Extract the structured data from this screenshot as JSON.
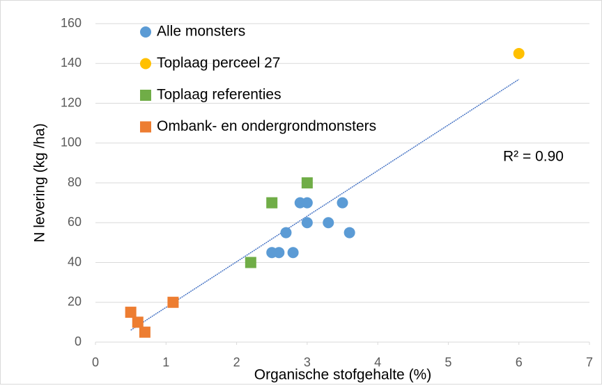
{
  "chart_data": {
    "type": "scatter",
    "x_label": "Organische stofgehalte (%)",
    "y_label": "N levering (kg /ha)",
    "xlim": [
      0,
      7
    ],
    "xticks": [
      0,
      1,
      2,
      3,
      4,
      5,
      6,
      7
    ],
    "ylim": [
      0,
      160
    ],
    "yticks": [
      0,
      20,
      40,
      60,
      80,
      100,
      120,
      140,
      160
    ],
    "grid": true,
    "legend": "top-left",
    "series": [
      {
        "name": "Alle monsters",
        "color": "#5b9bd5",
        "marker": "circle",
        "x": [
          2.5,
          2.6,
          2.8,
          2.7,
          2.9,
          3.0,
          3.0,
          3.3,
          3.5,
          3.6
        ],
        "values": [
          45,
          45,
          45,
          55,
          70,
          70,
          60,
          60,
          70,
          55
        ]
      },
      {
        "name": "Toplaag perceel 27",
        "color": "#ffc000",
        "marker": "circle",
        "x": [
          6
        ],
        "values": [
          145
        ]
      },
      {
        "name": "Toplaag referenties",
        "color": "#70ad47",
        "marker": "square",
        "x": [
          2.2,
          2.5,
          3.0
        ],
        "values": [
          40,
          70,
          80
        ]
      },
      {
        "name": "Ombank- en ondergrondmonsters",
        "color": "#ed7d31",
        "marker": "square",
        "x": [
          0.5,
          0.6,
          0.7,
          1.1
        ],
        "values": [
          15,
          10,
          5,
          20
        ]
      }
    ],
    "trendline": {
      "x": [
        0.5,
        6
      ],
      "y": [
        6,
        132
      ],
      "color": "#4472c4",
      "label": "R² = 0.90"
    }
  }
}
